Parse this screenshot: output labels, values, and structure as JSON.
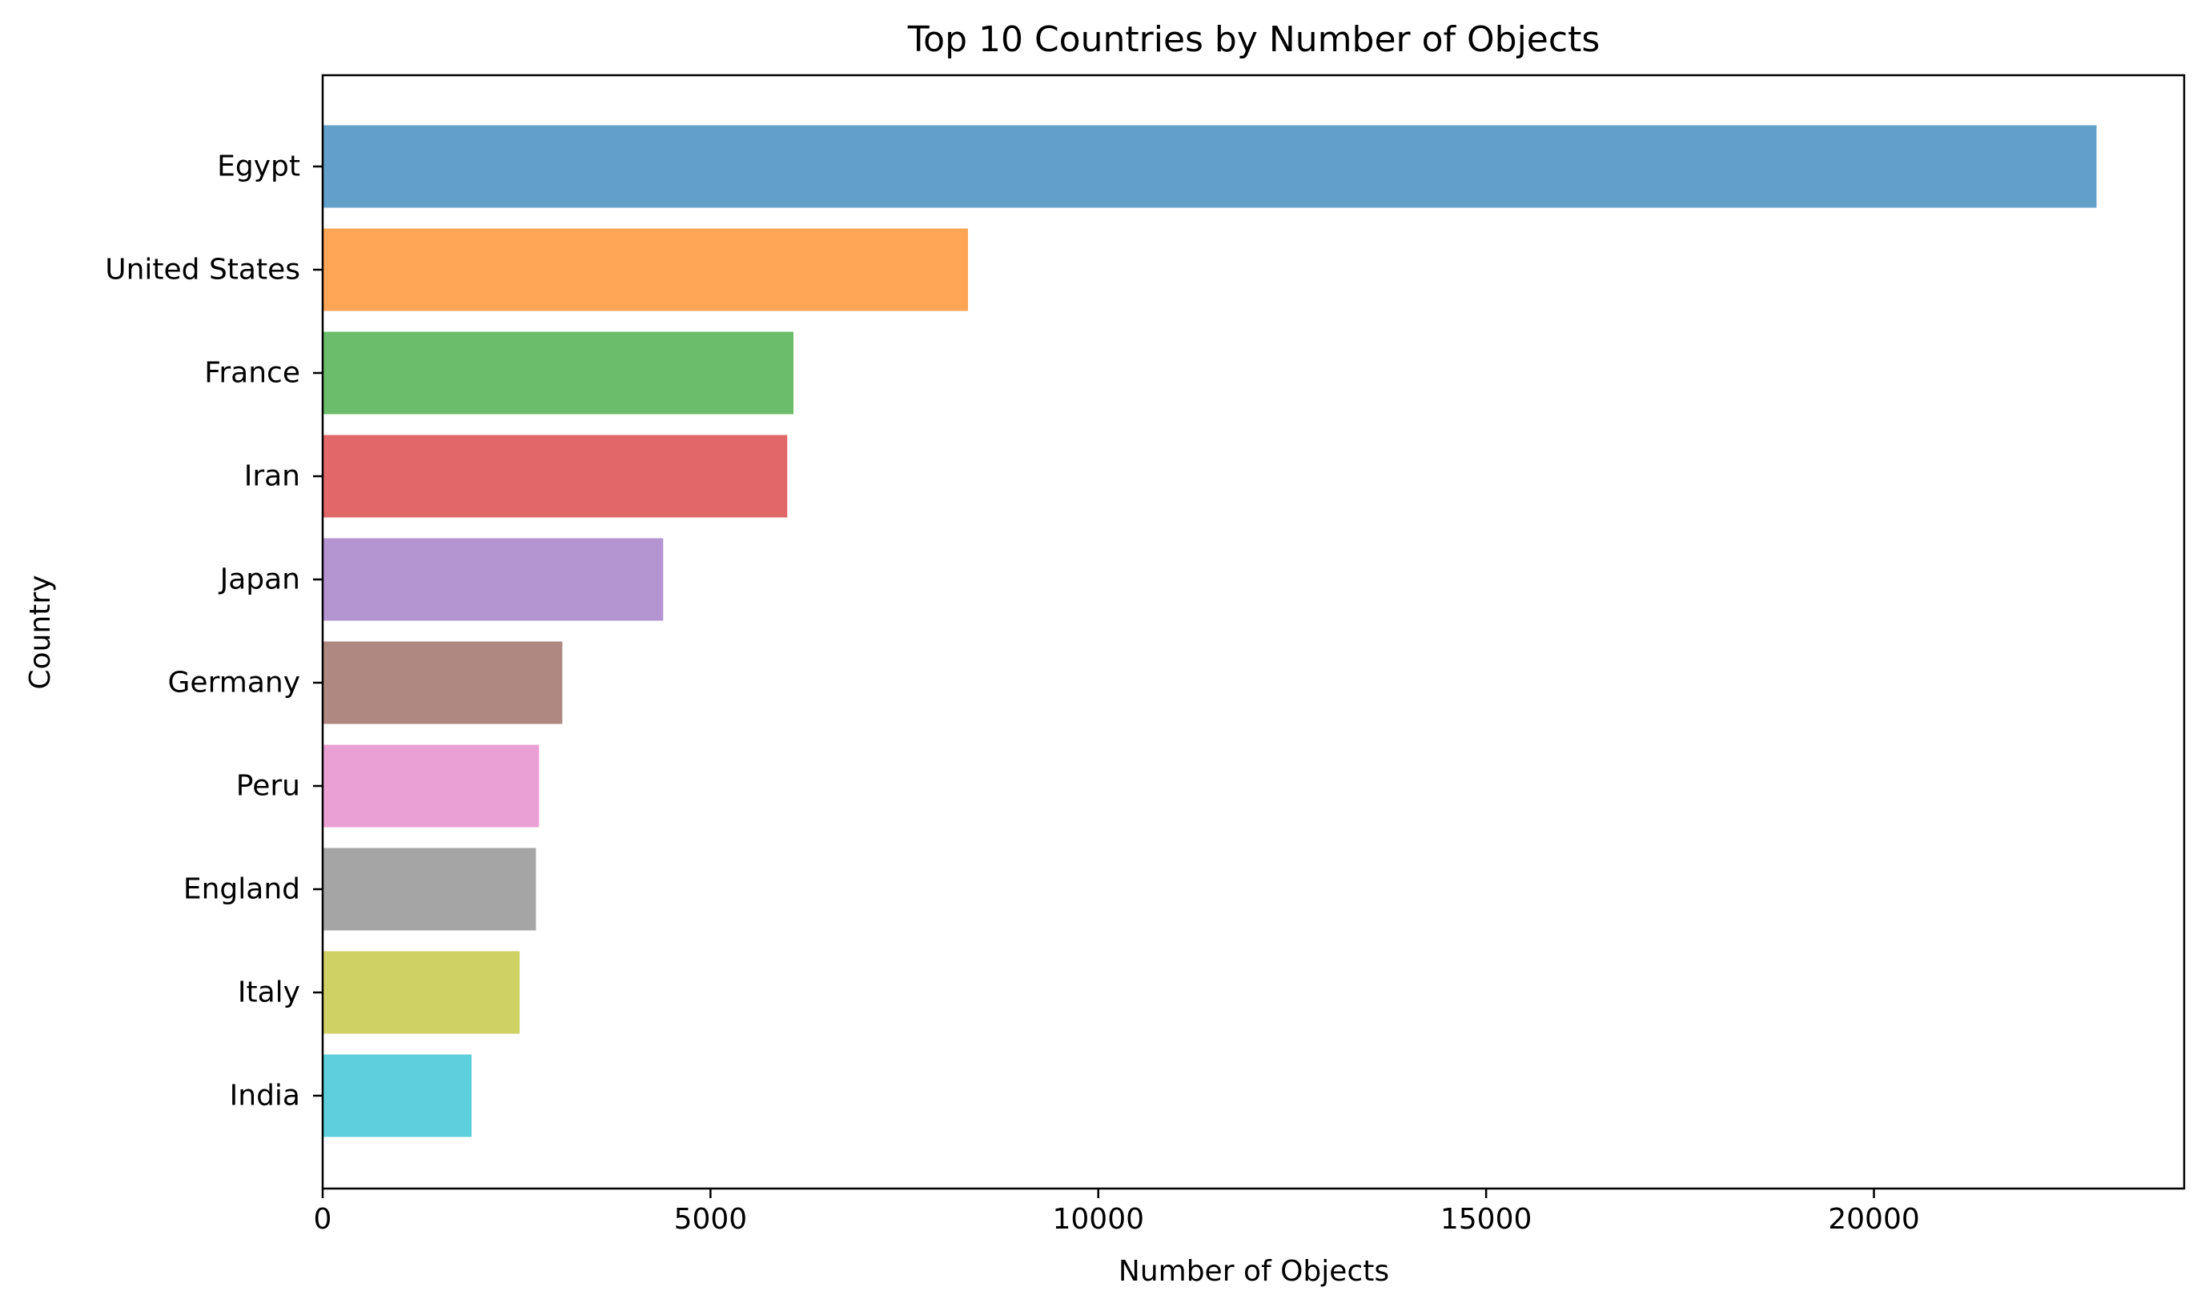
{
  "chart_data": {
    "type": "bar",
    "orientation": "horizontal",
    "title": "Top 10 Countries by Number of Objects",
    "xlabel": "Number of Objects",
    "ylabel": "Country",
    "categories": [
      "Egypt",
      "United States",
      "France",
      "Iran",
      "Japan",
      "Germany",
      "Peru",
      "England",
      "Italy",
      "India"
    ],
    "values": [
      22870,
      8320,
      6070,
      5990,
      4390,
      3090,
      2790,
      2750,
      2540,
      1920
    ],
    "colors": [
      "#1f77b4",
      "#ff7f0e",
      "#2ca02c",
      "#d62728",
      "#9467bd",
      "#8c564b",
      "#e377c2",
      "#7f7f7f",
      "#bcbd22",
      "#17becf"
    ],
    "bar_opacity": 0.7,
    "xlim": [
      0,
      24000
    ],
    "xticks": [
      0,
      5000,
      10000,
      15000,
      20000
    ],
    "xtick_labels": [
      "0",
      "5000",
      "10000",
      "15000",
      "20000"
    ],
    "grid": false,
    "legend": "none"
  }
}
